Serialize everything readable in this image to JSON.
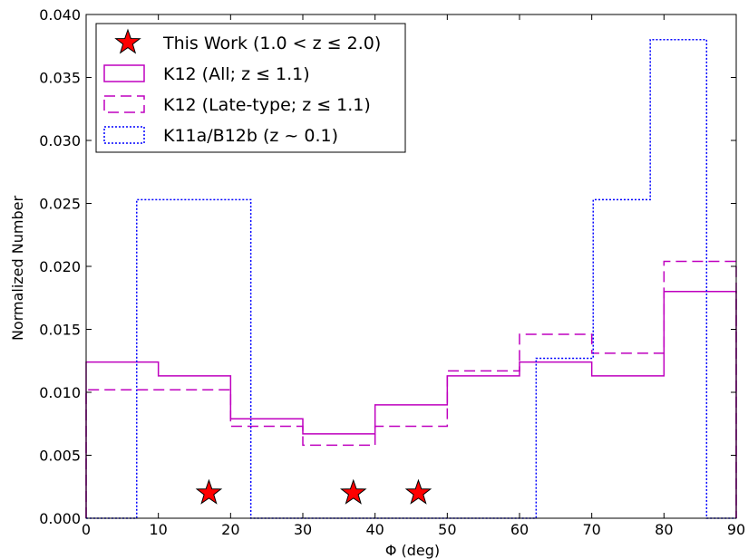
{
  "chart_data": {
    "type": "histogram",
    "xlabel": "Φ (deg)",
    "ylabel": "Normalized Number",
    "xlim": [
      0,
      90
    ],
    "ylim": [
      0,
      0.04
    ],
    "x_ticks": [
      "0",
      "10",
      "20",
      "30",
      "40",
      "50",
      "60",
      "70",
      "80",
      "90"
    ],
    "y_ticks": [
      "0.000",
      "0.005",
      "0.010",
      "0.015",
      "0.020",
      "0.025",
      "0.030",
      "0.035",
      "0.040"
    ],
    "grid": false,
    "legend_position": "top-left",
    "series": [
      {
        "name": "This Work (1.0 < z ≤ 2.0)",
        "kind": "scatter-star",
        "color": "#ff0000",
        "points": [
          [
            17,
            0.002
          ],
          [
            37,
            0.002
          ],
          [
            46,
            0.002
          ]
        ]
      },
      {
        "name": "K12 (All; z ≤ 1.1)",
        "kind": "step",
        "style": "solid",
        "color": "#bf00bf",
        "edges": [
          0,
          10,
          20,
          30,
          40,
          50,
          60,
          70,
          80,
          90
        ],
        "values": [
          0.0124,
          0.0113,
          0.0079,
          0.0067,
          0.009,
          0.0113,
          0.0124,
          0.0113,
          0.018
        ]
      },
      {
        "name": "K12 (Late-type; z ≤ 1.1)",
        "kind": "step",
        "style": "dashed",
        "color": "#bf00bf",
        "edges": [
          0,
          10,
          20,
          30,
          40,
          50,
          60,
          70,
          80,
          90
        ],
        "values": [
          0.0102,
          0.0102,
          0.0073,
          0.0058,
          0.0073,
          0.0117,
          0.0146,
          0.0131,
          0.0204
        ]
      },
      {
        "name": "K11a/B12b (z ~ 0.1)",
        "kind": "step",
        "style": "dotted",
        "color": "#0000ff",
        "edges": [
          0,
          7,
          22.8,
          62.3,
          70.2,
          78.1,
          85.9,
          90
        ],
        "values": [
          0,
          0.0253,
          0,
          0.0127,
          0.0253,
          0.038,
          0
        ]
      }
    ]
  }
}
